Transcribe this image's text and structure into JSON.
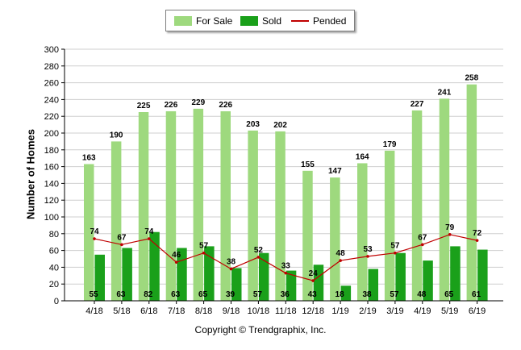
{
  "chart_data": {
    "type": "bar",
    "ylabel": "Number of Homes",
    "xlabel": "",
    "ylim": [
      0,
      300
    ],
    "yticks": [
      0,
      20,
      40,
      60,
      80,
      100,
      120,
      140,
      160,
      180,
      200,
      220,
      240,
      260,
      280,
      300
    ],
    "grid": true,
    "legend_position": "top-center",
    "categories": [
      "4/18",
      "5/18",
      "6/18",
      "7/18",
      "8/18",
      "9/18",
      "10/18",
      "11/18",
      "12/18",
      "1/19",
      "2/19",
      "3/19",
      "4/19",
      "5/19",
      "6/19"
    ],
    "series": [
      {
        "name": "For Sale",
        "type": "bar",
        "color": "#9ed97e",
        "values": [
          163,
          190,
          225,
          226,
          229,
          226,
          203,
          202,
          155,
          147,
          164,
          179,
          227,
          241,
          258
        ]
      },
      {
        "name": "Sold",
        "type": "bar",
        "color": "#1aa01a",
        "values": [
          55,
          63,
          82,
          63,
          65,
          39,
          57,
          36,
          43,
          18,
          38,
          57,
          48,
          65,
          61
        ]
      },
      {
        "name": "Pended",
        "type": "line",
        "color": "#c00000",
        "values": [
          74,
          67,
          74,
          46,
          57,
          38,
          52,
          33,
          24,
          48,
          53,
          57,
          67,
          79,
          72
        ]
      }
    ]
  },
  "footer": {
    "copyright": "Copyright © Trendgraphix, Inc."
  }
}
